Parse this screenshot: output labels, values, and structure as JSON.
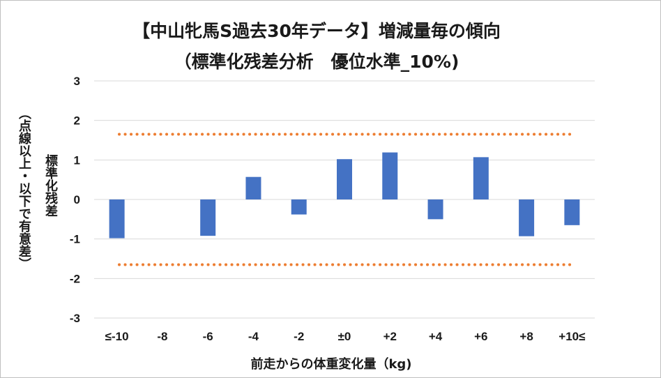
{
  "chart_data": {
    "type": "bar",
    "title": [
      "【中山牝馬S過去30年データ】増減量毎の傾向",
      "（標準化残差分析　優位水準_10%)"
    ],
    "categories": [
      "≤-10",
      "-8",
      "-6",
      "-4",
      "-2",
      "±0",
      "+2",
      "+4",
      "+6",
      "+8",
      "+10≤"
    ],
    "values": [
      -0.98,
      0,
      -0.92,
      0.57,
      -0.38,
      1.02,
      1.19,
      -0.5,
      1.07,
      -0.93,
      -0.65
    ],
    "xlabel": "前走からの体重変化量（kg)",
    "ylabel": "標準化残差",
    "ylabel_note": "（点線以上・以下で有意差）",
    "ylim": [
      -3,
      3
    ],
    "yticks": [
      "3",
      "2",
      "1",
      "0",
      "-1",
      "-2",
      "-3"
    ],
    "threshold": 1.65,
    "grid": true,
    "legend": "none",
    "colors": {
      "bar": "#4472c4",
      "threshold": "#ed7d31",
      "grid": "#d9d9d9"
    }
  }
}
